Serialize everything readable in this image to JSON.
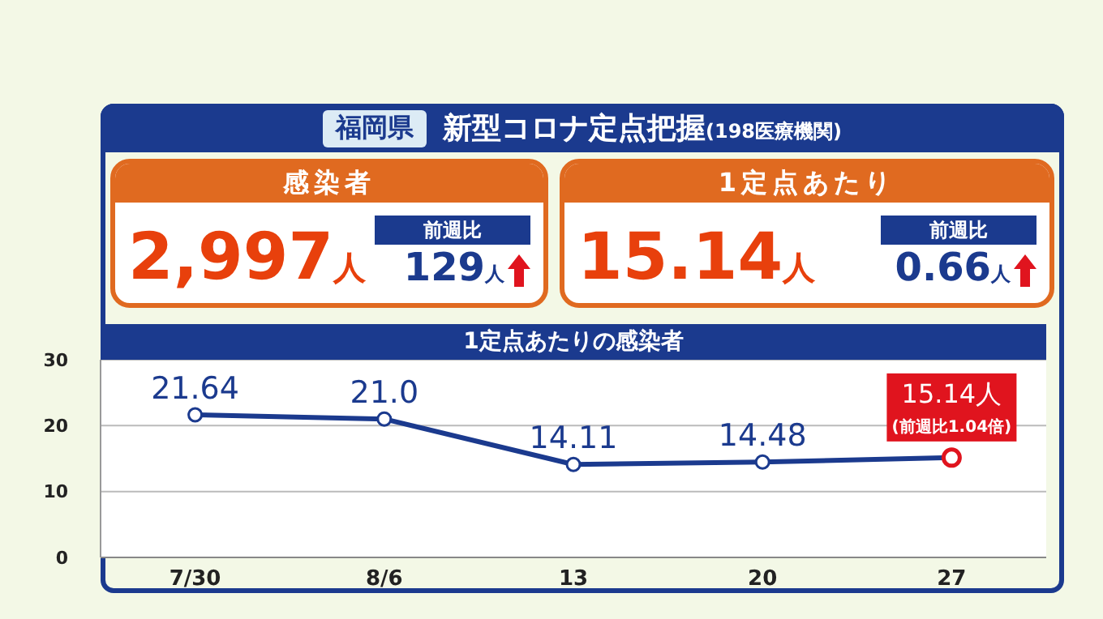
{
  "chart_data": [
    {
      "type": "other",
      "title": "新型コロナ定点把握",
      "subtitle": "(198医療機関)",
      "annotations": [
        "福岡県",
        "感染者",
        "2,997人",
        "前週比",
        "129人",
        "1定点あたり",
        "15.14人",
        "前週比",
        "0.66人"
      ]
    },
    {
      "type": "line",
      "title": "1定点あたりの感染者",
      "categories": [
        "7/30",
        "8/6",
        "13",
        "20",
        "27"
      ],
      "series": [
        {
          "color": "#1b3a8e",
          "colors": [
            "#1b3a8e",
            "#1b3a8e",
            "#1b3a8e",
            "#1b3a8e",
            "#e0141e"
          ],
          "values": [
            21.64,
            21.0,
            14.11,
            14.48,
            15.14
          ],
          "value_labels": [
            "21.64",
            "21.0",
            "14.11",
            "14.48",
            "15.14人"
          ]
        }
      ],
      "annotations": [
        {
          "text": "(前週比1.04倍)",
          "x": "27",
          "y": 15.14
        }
      ],
      "ylim": [
        0,
        30
      ],
      "yticks": [
        0,
        10,
        20,
        30
      ],
      "grid": "y",
      "marker": "circle",
      "line_style": "solid"
    }
  ]
}
